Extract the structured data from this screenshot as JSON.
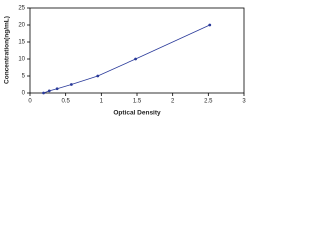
{
  "chart_data": {
    "type": "scatter",
    "x_label": "Optical Density",
    "y_label": "Concentration(ng/mL)",
    "x": [
      0.19,
      0.27,
      0.38,
      0.58,
      0.95,
      1.48,
      2.52
    ],
    "series": [
      {
        "color": "#2a3a9a",
        "values": [
          0,
          0.625,
          1.25,
          2.5,
          5,
          10,
          20
        ]
      }
    ],
    "line": true,
    "xlim": [
      0,
      3
    ],
    "xticks": [
      0,
      0.5,
      1,
      1.5,
      2,
      2.5,
      3
    ],
    "ylim": [
      0,
      25
    ],
    "yticks": [
      0,
      5,
      10,
      15,
      20,
      25
    ]
  }
}
